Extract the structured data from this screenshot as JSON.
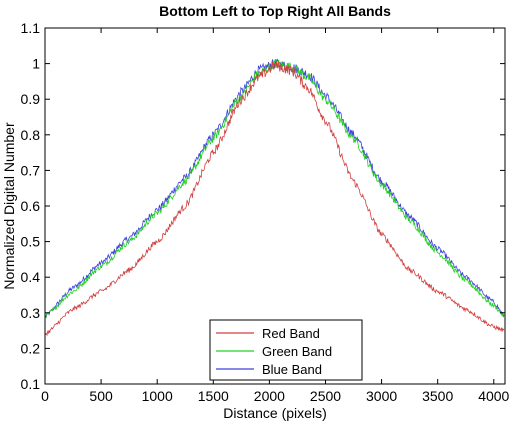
{
  "chart_data": {
    "type": "line",
    "title": "Bottom Left to Top Right All Bands",
    "xlabel": "Distance (pixels)",
    "ylabel": "Normalized Digital Number",
    "xlim": [
      0,
      4100
    ],
    "ylim": [
      0.1,
      1.1
    ],
    "xticks": [
      0,
      500,
      1000,
      1500,
      2000,
      2500,
      3000,
      3500,
      4000
    ],
    "yticks": [
      0.1,
      0.2,
      0.3,
      0.4,
      0.5,
      0.6,
      0.7,
      0.8,
      0.9,
      1,
      1.1
    ],
    "grid": false,
    "legend_position": "bottom-center",
    "series": [
      {
        "name": "Red Band",
        "color": "#d04040",
        "x": [
          0,
          250,
          500,
          750,
          1000,
          1250,
          1500,
          1750,
          1900,
          2050,
          2200,
          2350,
          2500,
          2750,
          3000,
          3250,
          3500,
          3750,
          4000,
          4096
        ],
        "y": [
          0.24,
          0.31,
          0.36,
          0.42,
          0.5,
          0.6,
          0.75,
          0.9,
          0.96,
          0.995,
          0.98,
          0.93,
          0.84,
          0.67,
          0.52,
          0.42,
          0.36,
          0.31,
          0.26,
          0.25
        ]
      },
      {
        "name": "Green Band",
        "color": "#20d020",
        "x": [
          0,
          250,
          500,
          750,
          1000,
          1250,
          1500,
          1750,
          1900,
          2050,
          2200,
          2350,
          2500,
          2750,
          3000,
          3250,
          3500,
          3750,
          4000,
          4096
        ],
        "y": [
          0.29,
          0.36,
          0.43,
          0.5,
          0.58,
          0.67,
          0.79,
          0.91,
          0.97,
          1.0,
          0.99,
          0.96,
          0.9,
          0.79,
          0.66,
          0.56,
          0.47,
          0.39,
          0.32,
          0.29
        ]
      },
      {
        "name": "Blue Band",
        "color": "#4040e0",
        "x": [
          0,
          250,
          500,
          750,
          1000,
          1250,
          1500,
          1750,
          1900,
          2050,
          2200,
          2350,
          2500,
          2750,
          3000,
          3250,
          3500,
          3750,
          4000,
          4096
        ],
        "y": [
          0.29,
          0.37,
          0.44,
          0.51,
          0.59,
          0.68,
          0.8,
          0.92,
          0.98,
          1.0,
          0.99,
          0.97,
          0.91,
          0.8,
          0.67,
          0.57,
          0.48,
          0.4,
          0.33,
          0.29
        ]
      }
    ]
  }
}
